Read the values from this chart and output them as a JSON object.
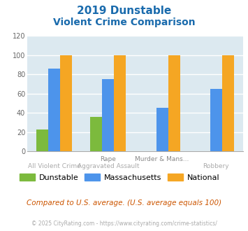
{
  "title_line1": "2019 Dunstable",
  "title_line2": "Violent Crime Comparison",
  "groups": [
    {
      "dunstable": 23,
      "massachusetts": 86,
      "national": 100
    },
    {
      "dunstable": 36,
      "massachusetts": 75,
      "national": 100
    },
    {
      "dunstable": 0,
      "massachusetts": 45,
      "national": 100
    },
    {
      "dunstable": 0,
      "massachusetts": 65,
      "national": 100
    }
  ],
  "row1_labels": [
    "",
    "Rape",
    "Murder & Mans...",
    ""
  ],
  "row2_labels": [
    "All Violent Crime",
    "Aggravated Assault",
    "",
    "Robbery"
  ],
  "dunstable_color": "#7cba3d",
  "massachusetts_color": "#4d94eb",
  "national_color": "#f5a623",
  "ylim": [
    0,
    120
  ],
  "yticks": [
    0,
    20,
    40,
    60,
    80,
    100,
    120
  ],
  "title_color": "#1a6bad",
  "plot_bg": "#dce9f0",
  "fig_bg": "#ffffff",
  "grid_color": "#ffffff",
  "footer_text": "Compared to U.S. average. (U.S. average equals 100)",
  "copyright_text": "© 2025 CityRating.com - https://www.cityrating.com/crime-statistics/",
  "legend_labels": [
    "Dunstable",
    "Massachusetts",
    "National"
  ],
  "bar_width": 0.22
}
